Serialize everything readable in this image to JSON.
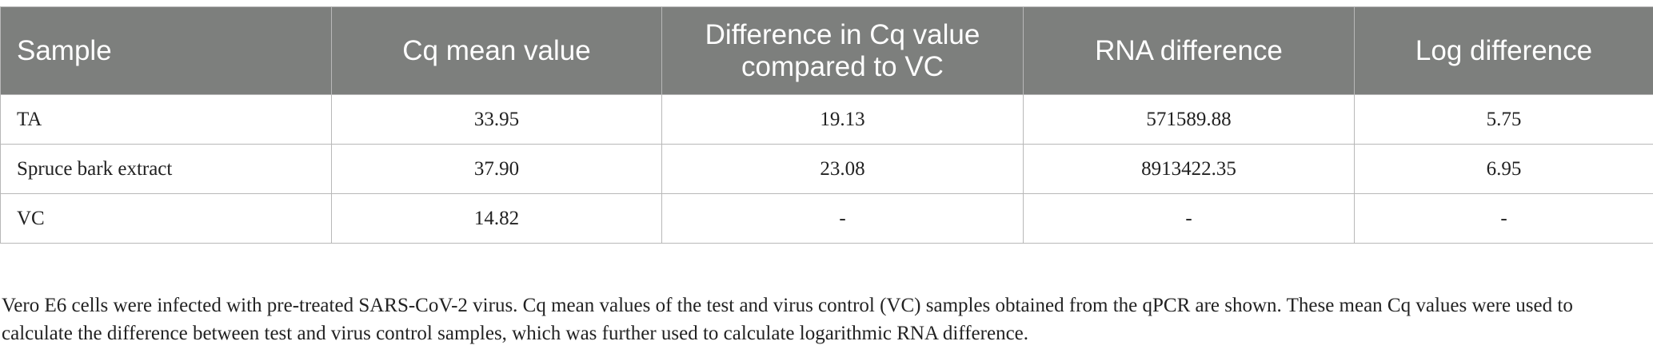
{
  "table": {
    "headers": [
      "Sample",
      "Cq mean value",
      "Difference in Cq value compared to VC",
      "RNA difference",
      "Log difference"
    ],
    "rows": [
      [
        "TA",
        "33.95",
        "19.13",
        "571589.88",
        "5.75"
      ],
      [
        "Spruce bark extract",
        "37.90",
        "23.08",
        "8913422.35",
        "6.95"
      ],
      [
        "VC",
        "14.82",
        "-",
        "-",
        "-"
      ]
    ]
  },
  "caption": "Vero E6 cells were infected with pre-treated SARS-CoV-2 virus. Cq mean values of the test and virus control (VC) samples obtained from the qPCR are shown. These mean Cq values were used to calculate the difference between test and virus control samples, which was further used to calculate logarithmic RNA difference."
}
